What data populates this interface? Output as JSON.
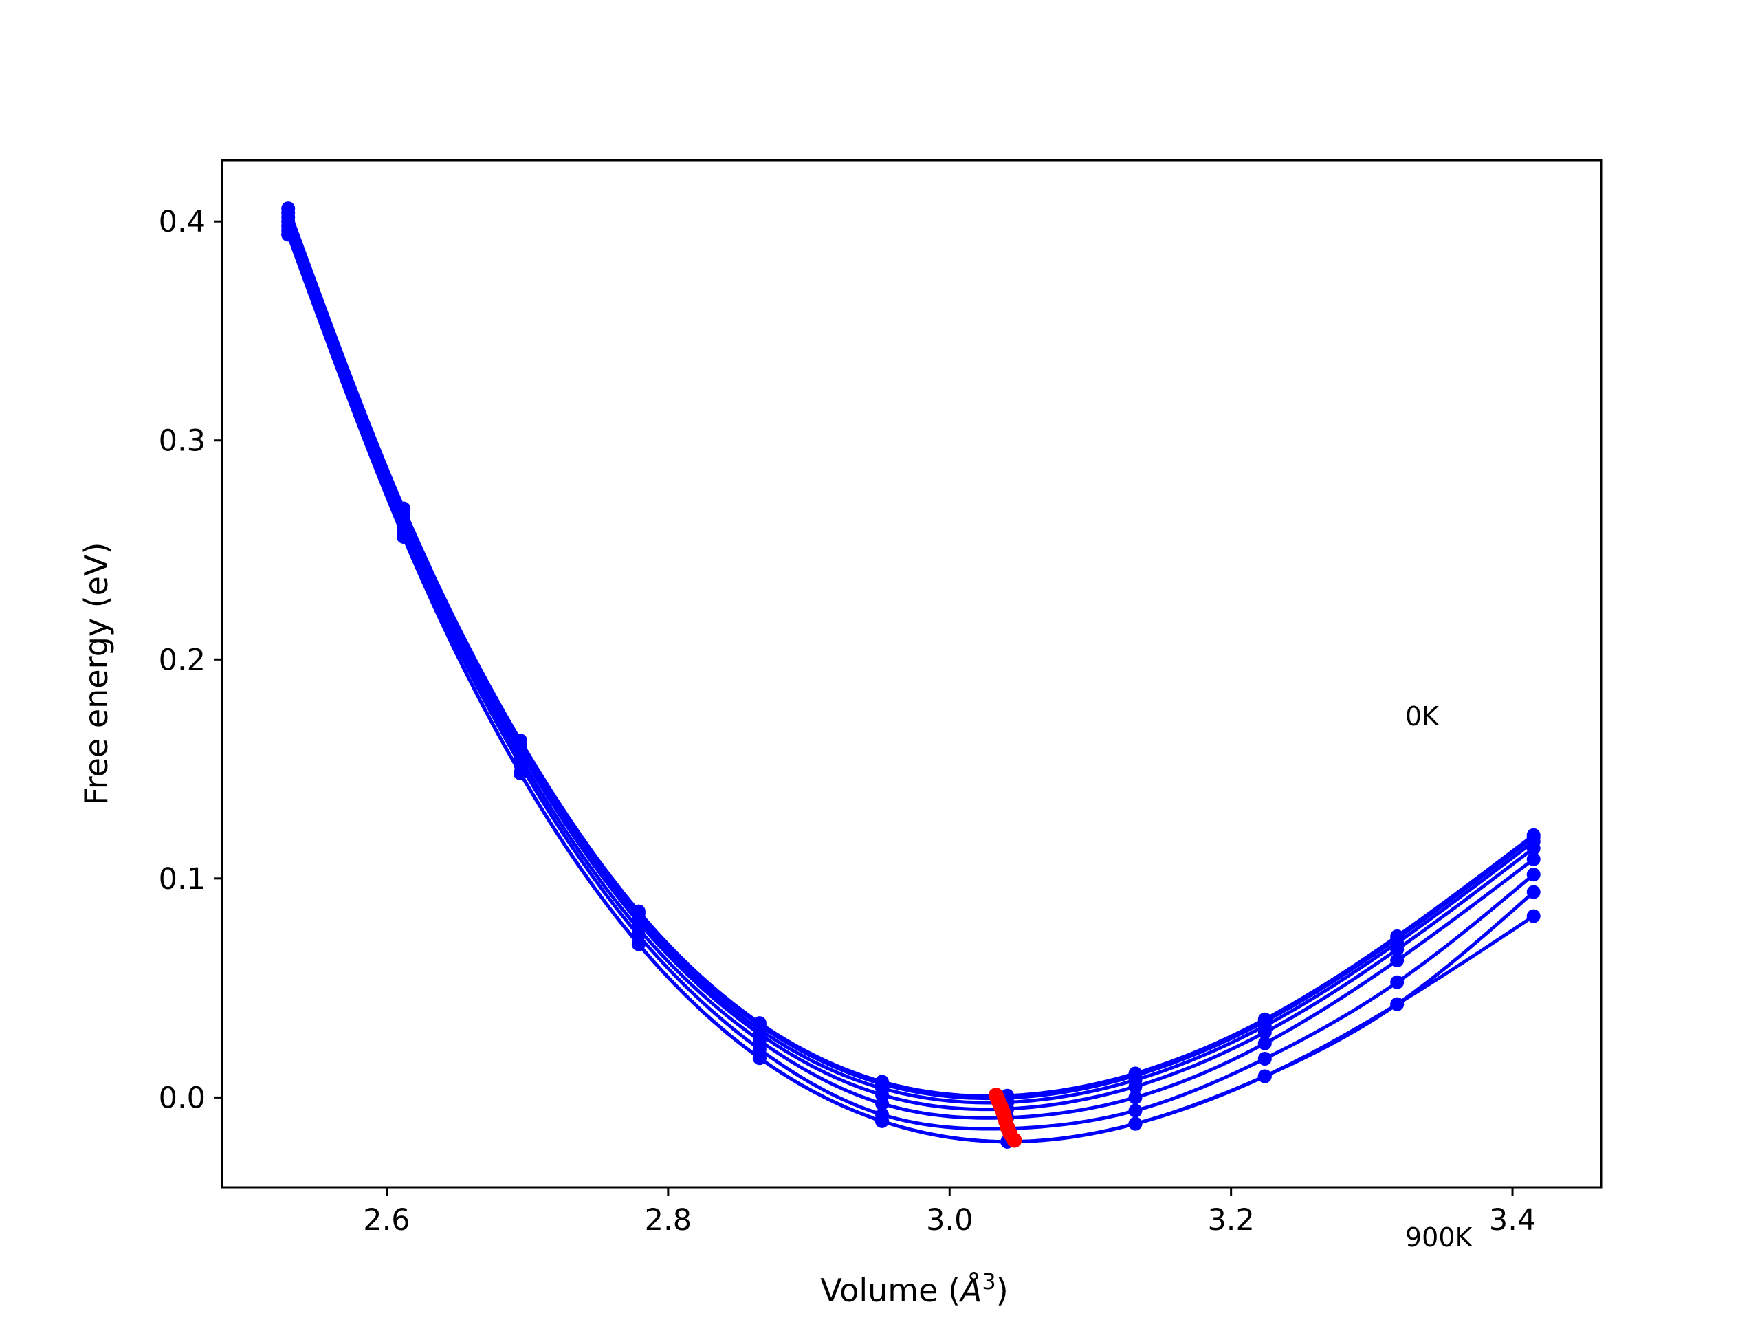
{
  "chart_data": {
    "type": "line",
    "xlabel": "Volume (",
    "xlabel_unit_main": "Å",
    "xlabel_unit_sup": "3",
    "xlabel_close": ")",
    "ylabel": "Free energy (eV)",
    "xlim": [
      2.483,
      3.463
    ],
    "ylim": [
      -0.041,
      0.428
    ],
    "xticks": [
      2.6,
      2.8,
      3.0,
      3.2,
      3.4
    ],
    "xtick_labels": [
      "2.6",
      "2.8",
      "3.0",
      "3.2",
      "3.4"
    ],
    "yticks": [
      0.0,
      0.1,
      0.2,
      0.3,
      0.4
    ],
    "ytick_labels": [
      "0.0",
      "0.1",
      "0.2",
      "0.3",
      "0.4"
    ],
    "grid": false,
    "legend": "none",
    "annotations": [
      {
        "text": "0K",
        "x": 3.327,
        "y": 0.17
      },
      {
        "text": "900K",
        "x": 3.327,
        "y": -0.064
      }
    ],
    "volume_points": [
      2.53,
      2.612,
      2.695,
      2.779,
      2.865,
      2.952,
      3.041,
      3.132,
      3.224,
      3.318,
      3.415
    ],
    "series": [
      {
        "values": [
          0.406,
          0.269,
          0.163,
          0.085,
          0.034,
          0.0072,
          0.0008,
          0.011,
          0.0357,
          0.0736,
          0.1198
        ]
      },
      {
        "values": [
          0.404,
          0.268,
          0.162,
          0.084,
          0.033,
          0.0062,
          -0.0002,
          0.01,
          0.0347,
          0.0726,
          0.1188
        ]
      },
      {
        "values": [
          0.402,
          0.266,
          0.16,
          0.082,
          0.031,
          0.0042,
          -0.0022,
          0.008,
          0.0327,
          0.0706,
          0.1168
        ]
      },
      {
        "values": [
          0.4,
          0.264,
          0.158,
          0.08,
          0.029,
          0.0012,
          -0.0052,
          0.005,
          0.0297,
          0.0676,
          0.1138
        ]
      },
      {
        "values": [
          0.398,
          0.262,
          0.155,
          0.077,
          0.026,
          -0.0028,
          -0.0092,
          0.0,
          0.0247,
          0.0626,
          0.1088
        ]
      },
      {
        "values": [
          0.396,
          0.259,
          0.152,
          0.074,
          0.022,
          -0.0078,
          -0.0142,
          -0.006,
          0.0177,
          0.0526,
          0.1018
        ]
      },
      {
        "values": [
          0.394,
          0.256,
          0.148,
          0.07,
          0.018,
          -0.0108,
          -0.0202,
          -0.012,
          0.0097,
          0.0426,
          0.0938
        ]
      }
    ],
    "extra_series": [
      {
        "values": [
          0.394,
          0.256,
          0.148,
          0.07,
          0.018,
          -0.0108,
          -0.0202,
          -0.012,
          0.0097,
          0.0426,
          0.0828
        ]
      }
    ],
    "minima": [
      {
        "x": 3.033,
        "y": 0.001
      },
      {
        "x": 3.034,
        "y": -0.0005
      },
      {
        "x": 3.035,
        "y": -0.002
      },
      {
        "x": 3.036,
        "y": -0.0035
      },
      {
        "x": 3.037,
        "y": -0.005
      },
      {
        "x": 3.038,
        "y": -0.0068
      },
      {
        "x": 3.039,
        "y": -0.0088
      },
      {
        "x": 3.04,
        "y": -0.011
      },
      {
        "x": 3.041,
        "y": -0.0135
      },
      {
        "x": 3.043,
        "y": -0.0165
      },
      {
        "x": 3.046,
        "y": -0.0195
      }
    ],
    "colors": {
      "curve": "#0000ff",
      "minima": "#ff0000",
      "axes": "#000000"
    }
  }
}
